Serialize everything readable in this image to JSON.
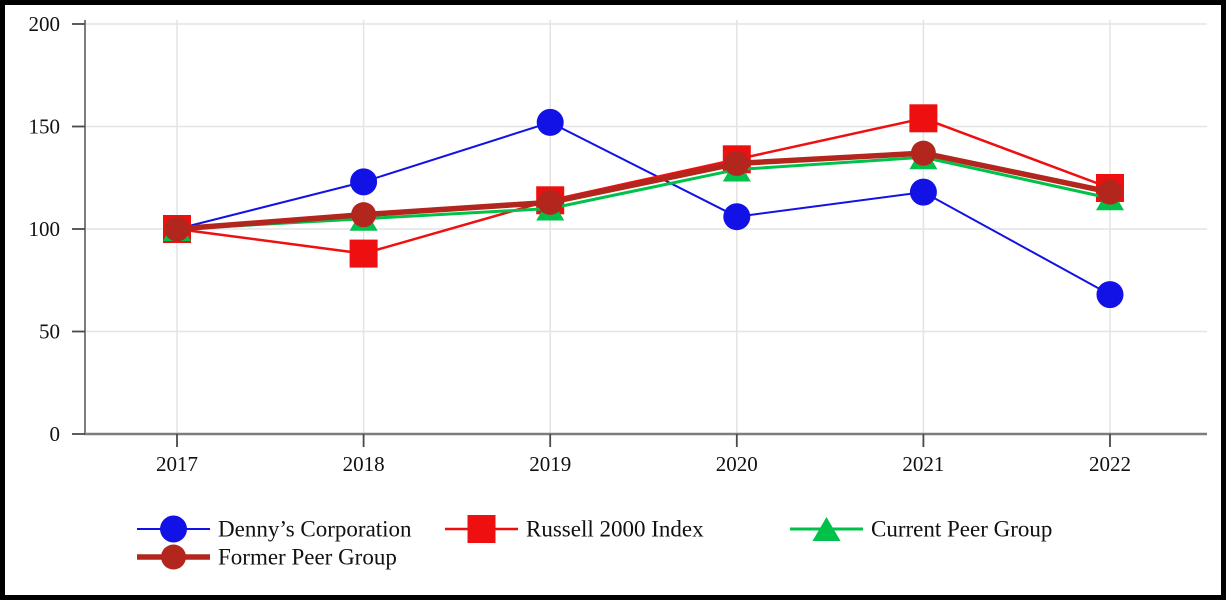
{
  "chart_data": {
    "type": "line",
    "title": "",
    "xlabel": "",
    "ylabel": "",
    "categories": [
      "2017",
      "2018",
      "2019",
      "2020",
      "2021",
      "2022"
    ],
    "yticks": [
      "0",
      "50",
      "100",
      "150",
      "200"
    ],
    "ylim": [
      0,
      200
    ],
    "grid": true,
    "legend_position": "bottom",
    "series": [
      {
        "name": "Denny’s Corporation",
        "marker": "circle",
        "color": "#1212e6",
        "line_width": 2,
        "values": [
          100,
          123,
          152,
          106,
          118,
          68
        ]
      },
      {
        "name": "Russell 2000 Index",
        "marker": "square",
        "color": "#ee1010",
        "line_width": 2.5,
        "values": [
          100,
          88,
          114,
          134,
          154,
          120
        ]
      },
      {
        "name": "Current Peer Group",
        "marker": "triangle",
        "color": "#00c24a",
        "line_width": 3,
        "values": [
          100,
          105,
          110,
          129,
          135,
          115
        ]
      },
      {
        "name": "Former Peer Group",
        "marker": "circle",
        "color": "#b2261e",
        "line_width": 5.5,
        "values": [
          100,
          107,
          113,
          132,
          137,
          118
        ]
      }
    ]
  }
}
